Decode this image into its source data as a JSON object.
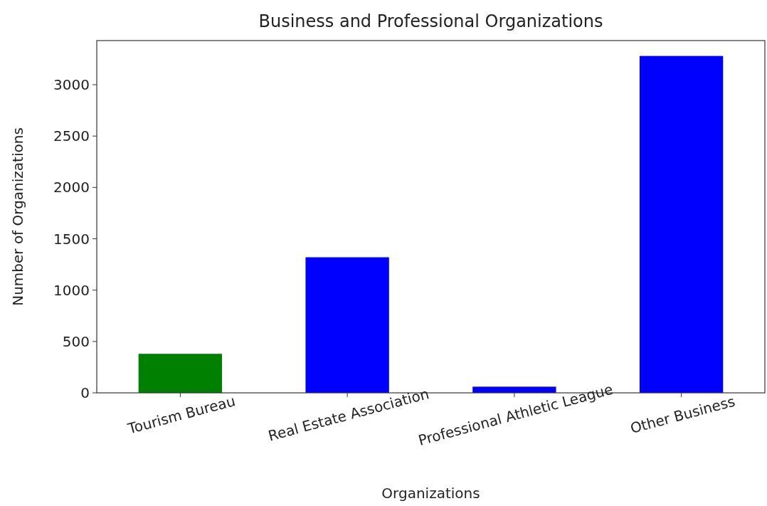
{
  "chart_data": {
    "type": "bar",
    "title": "Business and Professional Organizations",
    "xlabel": "Organizations",
    "ylabel": "Number of Organizations",
    "categories": [
      "Tourism Bureau",
      "Real Estate Association",
      "Professional Athletic League",
      "Other Business"
    ],
    "values": [
      380,
      1320,
      60,
      3280
    ],
    "colors": [
      "#008000",
      "#0000ff",
      "#0000ff",
      "#0000ff"
    ],
    "ylim": [
      0,
      3430
    ],
    "yticks": [
      0,
      500,
      1000,
      1500,
      2000,
      2500,
      3000
    ],
    "grid": false
  }
}
